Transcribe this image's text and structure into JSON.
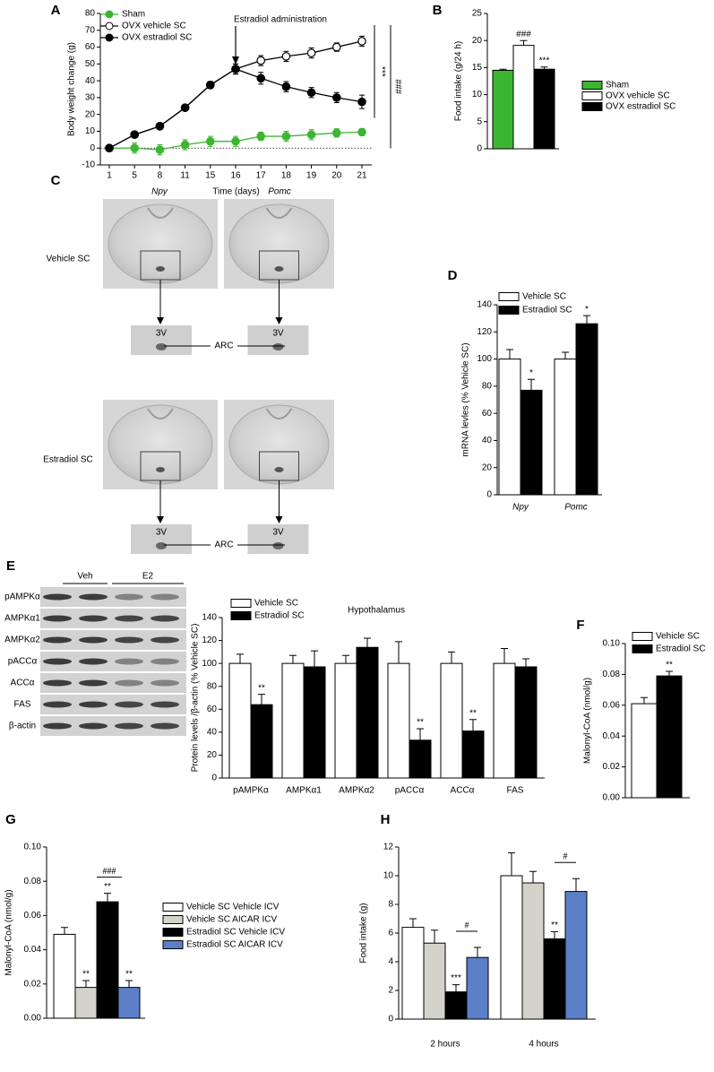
{
  "chart_data": [
    {
      "panel": "A",
      "type": "line",
      "categories": [
        "1",
        "5",
        "8",
        "11",
        "15",
        "16",
        "17",
        "18",
        "19",
        "20",
        "21"
      ],
      "xlabel": "Time (days)",
      "ylabel": "Body weight change  (g)",
      "ylim": [
        -10,
        80
      ],
      "yticks": [
        -10,
        0,
        10,
        20,
        30,
        40,
        50,
        60,
        70,
        80
      ],
      "annotation": "Estradiol administration",
      "significance": [
        "***",
        "###"
      ],
      "series": [
        {
          "name": "Sham",
          "color": "#3cb531",
          "fill": "#3cb531",
          "values": [
            0,
            0,
            -1,
            2,
            4,
            4,
            7,
            7,
            8,
            9,
            9.5
          ],
          "errors": [
            1,
            3,
            3,
            3,
            3,
            3,
            2.5,
            3,
            3,
            2.5,
            2
          ]
        },
        {
          "name": "OVX vehicle SC",
          "color": "#000000",
          "fill": "#ffffff",
          "values": [
            0,
            8,
            13,
            24,
            37.5,
            47,
            52,
            54.5,
            56.5,
            60,
            63.5
          ],
          "errors": [
            0.5,
            1,
            1,
            1.5,
            2,
            3,
            3,
            3,
            3,
            2.5,
            3
          ]
        },
        {
          "name": "OVX estradiol SC",
          "color": "#000000",
          "fill": "#000000",
          "values": [
            0,
            8,
            13,
            24,
            37.5,
            47,
            41.5,
            36.5,
            33,
            30,
            27.5
          ],
          "errors": [
            0.5,
            1,
            1,
            1.5,
            2,
            3,
            3.5,
            3,
            3,
            3,
            4
          ]
        }
      ]
    },
    {
      "panel": "B",
      "type": "bar",
      "categories": [
        null
      ],
      "ylabel": "Food intake  (g/24 h)",
      "ylim": [
        0,
        25
      ],
      "yticks": [
        0,
        5,
        10,
        15,
        20,
        25
      ],
      "series": [
        {
          "name": "Sham",
          "color": "#3cb531",
          "values": [
            14.5
          ],
          "errors": [
            0.2
          ],
          "significance": [
            null
          ]
        },
        {
          "name": "OVX vehicle SC",
          "color": "#ffffff",
          "values": [
            19.1
          ],
          "errors": [
            0.9
          ],
          "significance": [
            "###"
          ]
        },
        {
          "name": "OVX estradiol SC",
          "color": "#000000",
          "values": [
            14.7
          ],
          "errors": [
            0.4
          ],
          "significance": [
            "***"
          ]
        }
      ]
    },
    {
      "panel": "D",
      "type": "bar",
      "categories": [
        "Npy",
        "Pomc"
      ],
      "ylabel": "mRNA levles (% Vehicle SC)",
      "ylim": [
        0,
        140
      ],
      "yticks": [
        0,
        20,
        40,
        60,
        80,
        100,
        120,
        140
      ],
      "series": [
        {
          "name": "Vehicle SC",
          "color": "#ffffff",
          "values": [
            100,
            100
          ],
          "errors": [
            7,
            5
          ],
          "significance": [
            null,
            null
          ]
        },
        {
          "name": "Estradiol SC",
          "color": "#000000",
          "values": [
            77,
            126
          ],
          "errors": [
            8,
            6
          ],
          "significance": [
            "*",
            "*"
          ]
        }
      ]
    },
    {
      "panel": "E",
      "type": "bar",
      "title": "Hypothalamus",
      "categories": [
        "pAMPKα",
        "AMPKα1",
        "AMPKα2",
        "pACCα",
        "ACCα",
        "FAS"
      ],
      "ylabel": "Protein levels /β-actin  (% Vehicle SC)",
      "ylim": [
        0,
        140
      ],
      "yticks": [
        0,
        20,
        40,
        60,
        80,
        100,
        120,
        140
      ],
      "series": [
        {
          "name": "Vehicle SC",
          "color": "#ffffff",
          "values": [
            100,
            100,
            100,
            100,
            100,
            100
          ],
          "errors": [
            8,
            7,
            7,
            19,
            10,
            13
          ],
          "significance": [
            null,
            null,
            null,
            null,
            null,
            null
          ]
        },
        {
          "name": "Estradiol SC",
          "color": "#000000",
          "values": [
            64,
            97,
            114,
            33,
            41,
            97
          ],
          "errors": [
            9,
            14,
            8,
            10,
            10,
            7
          ],
          "significance": [
            "**",
            null,
            null,
            "**",
            "**",
            null
          ]
        }
      ]
    },
    {
      "panel": "F",
      "type": "bar",
      "categories": [
        null
      ],
      "ylabel": "Malonyl-CoA  (nmol/g)",
      "ylim": [
        0,
        0.1
      ],
      "yticks": [
        {
          "value": 0,
          "label": "0.00"
        },
        {
          "value": 0.02,
          "label": "0.02"
        },
        {
          "value": 0.04,
          "label": "0.04"
        },
        {
          "value": 0.06,
          "label": "0.06"
        },
        {
          "value": 0.08,
          "label": "0.08"
        },
        {
          "value": 0.1,
          "label": "0.10"
        }
      ],
      "series": [
        {
          "name": "Vehicle SC",
          "color": "#ffffff",
          "values": [
            0.061
          ],
          "errors": [
            0.004
          ],
          "significance": [
            null
          ]
        },
        {
          "name": "Estradiol SC",
          "color": "#000000",
          "values": [
            0.079
          ],
          "errors": [
            0.003
          ],
          "significance": [
            "**"
          ]
        }
      ]
    },
    {
      "panel": "G",
      "type": "bar",
      "categories": [
        null
      ],
      "ylabel": "Malonyl-CoA  (nmol/g)",
      "ylim": [
        0,
        0.1
      ],
      "yticks": [
        {
          "value": 0,
          "label": "0.00"
        },
        {
          "value": 0.02,
          "label": "0.02"
        },
        {
          "value": 0.04,
          "label": "0.04"
        },
        {
          "value": 0.06,
          "label": "0.06"
        },
        {
          "value": 0.08,
          "label": "0.08"
        },
        {
          "value": 0.1,
          "label": "0.10"
        }
      ],
      "bracket_labels": [
        "###"
      ],
      "series": [
        {
          "name": "Vehicle SC Vehicle ICV",
          "color": "#ffffff",
          "values": [
            0.049
          ],
          "errors": [
            0.004
          ],
          "significance": [
            null
          ]
        },
        {
          "name": "Vehicle SC AICAR ICV",
          "color": "#d3d3cb",
          "values": [
            0.018
          ],
          "errors": [
            0.004
          ],
          "significance": [
            "**"
          ]
        },
        {
          "name": "Estradiol SC Vehicle ICV",
          "color": "#000000",
          "values": [
            0.068
          ],
          "errors": [
            0.005
          ],
          "significance": [
            "**"
          ]
        },
        {
          "name": "Estradiol SC AICAR ICV",
          "color": "#5b80c8",
          "values": [
            0.018
          ],
          "errors": [
            0.004
          ],
          "significance": [
            "**"
          ]
        }
      ]
    },
    {
      "panel": "H",
      "type": "bar",
      "categories": [
        "2 hours",
        "4 hours"
      ],
      "ylabel": "Food intake (g)",
      "ylim": [
        0,
        12
      ],
      "yticks": [
        0,
        2,
        4,
        6,
        8,
        10,
        12
      ],
      "bracket_labels": [
        "#",
        "#"
      ],
      "series": [
        {
          "name": "Vehicle SC Vehicle ICV",
          "color": "#ffffff",
          "values": [
            6.4,
            10
          ],
          "errors": [
            0.6,
            1.6
          ],
          "significance": [
            null,
            null
          ]
        },
        {
          "name": "Vehicle SC AICAR ICV",
          "color": "#d3d3cb",
          "values": [
            5.3,
            9.5
          ],
          "errors": [
            0.9,
            0.8
          ],
          "significance": [
            null,
            null
          ]
        },
        {
          "name": "Estradiol SC Vehicle ICV",
          "color": "#000000",
          "values": [
            1.9,
            5.6
          ],
          "errors": [
            0.5,
            0.5
          ],
          "significance": [
            "***",
            "**"
          ]
        },
        {
          "name": "Estradiol SC AICAR ICV",
          "color": "#5b80c8",
          "values": [
            4.3,
            8.9
          ],
          "errors": [
            0.7,
            0.9
          ],
          "significance": [
            null,
            null
          ]
        }
      ]
    }
  ],
  "figure_c": {
    "panel": "C",
    "columns": [
      "Npy",
      "Pomc"
    ],
    "rows": [
      "Vehicle SC",
      "Estradiol SC"
    ],
    "inset_label": "3V",
    "region_label": "ARC"
  },
  "blot": {
    "groups": [
      "Veh",
      "E2"
    ],
    "rows": [
      "pAMPKα",
      "AMPKα1",
      "AMPKα2",
      "pACCα",
      "ACCα",
      "FAS",
      "β-actin"
    ]
  }
}
